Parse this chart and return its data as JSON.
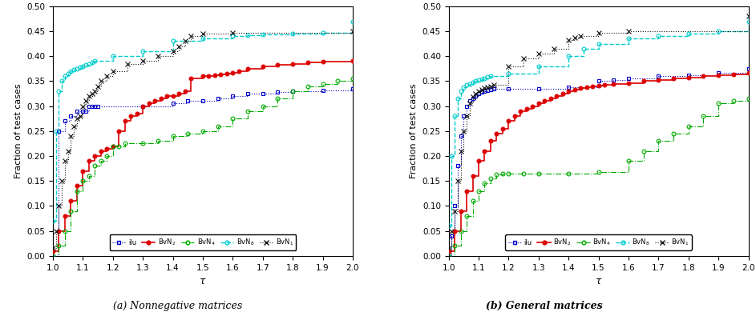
{
  "subplot_labels": [
    "(a) Nonnegative matrices",
    "(b) General matrices"
  ],
  "xlabel": "τ",
  "ylabel": "Fraction of test cases",
  "xlim": [
    1.0,
    2.0
  ],
  "ylim": [
    0.0,
    0.5
  ],
  "yticks": [
    0.0,
    0.05,
    0.1,
    0.15,
    0.2,
    0.25,
    0.3,
    0.35,
    0.4,
    0.45,
    0.5
  ],
  "xticks": [
    1.0,
    1.1,
    1.2,
    1.3,
    1.4,
    1.5,
    1.6,
    1.7,
    1.8,
    1.9,
    2.0
  ],
  "legend_labels": [
    "ilu",
    "BvN$_2$",
    "BvN$_4$",
    "BvN$_8$",
    "BvN$_1$"
  ],
  "colors": {
    "ilu": "#0000cc",
    "BvN2": "#dd0000",
    "BvN4": "#00aa00",
    "BvN8": "#00cccc",
    "BvN1": "#111111"
  },
  "plot_a": {
    "ilu": {
      "x": [
        1.0,
        1.02,
        1.04,
        1.06,
        1.08,
        1.1,
        1.11,
        1.12,
        1.13,
        1.14,
        1.15,
        1.3,
        1.4,
        1.45,
        1.5,
        1.55,
        1.6,
        1.65,
        1.7,
        1.75,
        1.8,
        1.9,
        2.0
      ],
      "y": [
        0.0,
        0.25,
        0.27,
        0.28,
        0.29,
        0.29,
        0.29,
        0.3,
        0.3,
        0.3,
        0.3,
        0.3,
        0.305,
        0.31,
        0.31,
        0.315,
        0.32,
        0.325,
        0.325,
        0.328,
        0.33,
        0.332,
        0.335
      ]
    },
    "BvN2": {
      "x": [
        1.0,
        1.02,
        1.04,
        1.06,
        1.08,
        1.1,
        1.12,
        1.14,
        1.16,
        1.18,
        1.2,
        1.22,
        1.24,
        1.26,
        1.28,
        1.3,
        1.32,
        1.34,
        1.36,
        1.38,
        1.4,
        1.42,
        1.44,
        1.46,
        1.5,
        1.52,
        1.54,
        1.56,
        1.58,
        1.6,
        1.62,
        1.65,
        1.7,
        1.75,
        1.8,
        1.85,
        1.9,
        2.0
      ],
      "y": [
        0.01,
        0.05,
        0.08,
        0.11,
        0.14,
        0.17,
        0.19,
        0.2,
        0.21,
        0.215,
        0.22,
        0.25,
        0.27,
        0.28,
        0.285,
        0.3,
        0.305,
        0.31,
        0.315,
        0.32,
        0.32,
        0.325,
        0.33,
        0.355,
        0.36,
        0.36,
        0.362,
        0.363,
        0.365,
        0.367,
        0.37,
        0.375,
        0.38,
        0.382,
        0.385,
        0.387,
        0.389,
        0.39
      ]
    },
    "BvN4": {
      "x": [
        1.0,
        1.02,
        1.04,
        1.06,
        1.08,
        1.1,
        1.12,
        1.14,
        1.16,
        1.18,
        1.2,
        1.22,
        1.24,
        1.3,
        1.35,
        1.4,
        1.45,
        1.5,
        1.55,
        1.6,
        1.65,
        1.7,
        1.75,
        1.8,
        1.85,
        1.9,
        1.95,
        2.0
      ],
      "y": [
        0.0,
        0.02,
        0.05,
        0.09,
        0.13,
        0.15,
        0.16,
        0.18,
        0.19,
        0.2,
        0.22,
        0.22,
        0.225,
        0.225,
        0.23,
        0.24,
        0.245,
        0.25,
        0.26,
        0.275,
        0.29,
        0.3,
        0.315,
        0.33,
        0.34,
        0.345,
        0.35,
        0.355
      ]
    },
    "BvN8": {
      "x": [
        1.0,
        1.01,
        1.02,
        1.03,
        1.04,
        1.05,
        1.06,
        1.07,
        1.08,
        1.09,
        1.1,
        1.11,
        1.12,
        1.13,
        1.14,
        1.2,
        1.3,
        1.4,
        1.5,
        1.6,
        1.65,
        1.7,
        1.8,
        1.9,
        2.0
      ],
      "y": [
        0.07,
        0.25,
        0.33,
        0.35,
        0.36,
        0.365,
        0.37,
        0.373,
        0.375,
        0.378,
        0.38,
        0.382,
        0.385,
        0.387,
        0.39,
        0.4,
        0.41,
        0.43,
        0.435,
        0.44,
        0.442,
        0.443,
        0.445,
        0.447,
        0.47
      ]
    },
    "BvN1": {
      "x": [
        1.0,
        1.01,
        1.02,
        1.03,
        1.04,
        1.05,
        1.06,
        1.07,
        1.08,
        1.09,
        1.1,
        1.11,
        1.12,
        1.13,
        1.14,
        1.15,
        1.16,
        1.18,
        1.2,
        1.25,
        1.3,
        1.35,
        1.4,
        1.42,
        1.44,
        1.46,
        1.5,
        1.6,
        2.0
      ],
      "y": [
        0.015,
        0.05,
        0.1,
        0.15,
        0.19,
        0.21,
        0.24,
        0.26,
        0.275,
        0.28,
        0.3,
        0.31,
        0.32,
        0.325,
        0.33,
        0.34,
        0.35,
        0.36,
        0.37,
        0.385,
        0.39,
        0.4,
        0.41,
        0.42,
        0.43,
        0.44,
        0.445,
        0.447,
        0.45
      ]
    }
  },
  "plot_b": {
    "ilu": {
      "x": [
        1.0,
        1.01,
        1.02,
        1.03,
        1.04,
        1.05,
        1.06,
        1.07,
        1.08,
        1.09,
        1.1,
        1.11,
        1.12,
        1.13,
        1.14,
        1.15,
        1.2,
        1.3,
        1.4,
        1.5,
        1.55,
        1.6,
        1.7,
        1.8,
        1.9,
        2.0
      ],
      "y": [
        0.0,
        0.04,
        0.1,
        0.18,
        0.24,
        0.28,
        0.3,
        0.31,
        0.315,
        0.32,
        0.325,
        0.328,
        0.33,
        0.332,
        0.333,
        0.334,
        0.335,
        0.335,
        0.338,
        0.35,
        0.353,
        0.355,
        0.36,
        0.362,
        0.366,
        0.375
      ]
    },
    "BvN2": {
      "x": [
        1.0,
        1.02,
        1.04,
        1.06,
        1.08,
        1.1,
        1.12,
        1.14,
        1.16,
        1.18,
        1.2,
        1.22,
        1.24,
        1.26,
        1.28,
        1.3,
        1.32,
        1.34,
        1.36,
        1.38,
        1.4,
        1.42,
        1.44,
        1.46,
        1.48,
        1.5,
        1.52,
        1.55,
        1.6,
        1.65,
        1.7,
        1.75,
        1.8,
        1.85,
        1.9,
        1.95,
        2.0
      ],
      "y": [
        0.01,
        0.05,
        0.09,
        0.13,
        0.16,
        0.19,
        0.21,
        0.23,
        0.245,
        0.255,
        0.27,
        0.28,
        0.29,
        0.295,
        0.3,
        0.305,
        0.31,
        0.315,
        0.32,
        0.325,
        0.33,
        0.333,
        0.336,
        0.338,
        0.34,
        0.341,
        0.342,
        0.344,
        0.346,
        0.35,
        0.353,
        0.355,
        0.357,
        0.36,
        0.362,
        0.364,
        0.366
      ]
    },
    "BvN4": {
      "x": [
        1.0,
        1.02,
        1.04,
        1.06,
        1.08,
        1.1,
        1.12,
        1.14,
        1.16,
        1.18,
        1.2,
        1.25,
        1.3,
        1.4,
        1.5,
        1.6,
        1.65,
        1.7,
        1.75,
        1.8,
        1.85,
        1.9,
        1.95,
        2.0
      ],
      "y": [
        0.0,
        0.02,
        0.05,
        0.08,
        0.11,
        0.13,
        0.145,
        0.155,
        0.163,
        0.165,
        0.165,
        0.165,
        0.165,
        0.165,
        0.168,
        0.19,
        0.21,
        0.23,
        0.245,
        0.26,
        0.28,
        0.305,
        0.31,
        0.316
      ]
    },
    "BvN8": {
      "x": [
        1.0,
        1.01,
        1.02,
        1.03,
        1.04,
        1.05,
        1.06,
        1.07,
        1.08,
        1.09,
        1.1,
        1.11,
        1.12,
        1.13,
        1.14,
        1.2,
        1.3,
        1.4,
        1.45,
        1.5,
        1.6,
        1.7,
        1.8,
        1.9,
        2.0
      ],
      "y": [
        0.06,
        0.2,
        0.28,
        0.315,
        0.33,
        0.338,
        0.342,
        0.345,
        0.348,
        0.35,
        0.352,
        0.354,
        0.356,
        0.358,
        0.36,
        0.365,
        0.38,
        0.4,
        0.415,
        0.425,
        0.435,
        0.44,
        0.445,
        0.45,
        0.47
      ]
    },
    "BvN1": {
      "x": [
        1.0,
        1.01,
        1.02,
        1.03,
        1.04,
        1.05,
        1.06,
        1.07,
        1.08,
        1.09,
        1.1,
        1.11,
        1.12,
        1.13,
        1.14,
        1.15,
        1.2,
        1.25,
        1.3,
        1.35,
        1.4,
        1.42,
        1.44,
        1.5,
        1.6,
        2.0
      ],
      "y": [
        0.015,
        0.05,
        0.09,
        0.15,
        0.21,
        0.25,
        0.28,
        0.305,
        0.318,
        0.325,
        0.33,
        0.333,
        0.336,
        0.338,
        0.34,
        0.342,
        0.38,
        0.395,
        0.405,
        0.415,
        0.432,
        0.437,
        0.44,
        0.446,
        0.45,
        0.48
      ]
    }
  }
}
